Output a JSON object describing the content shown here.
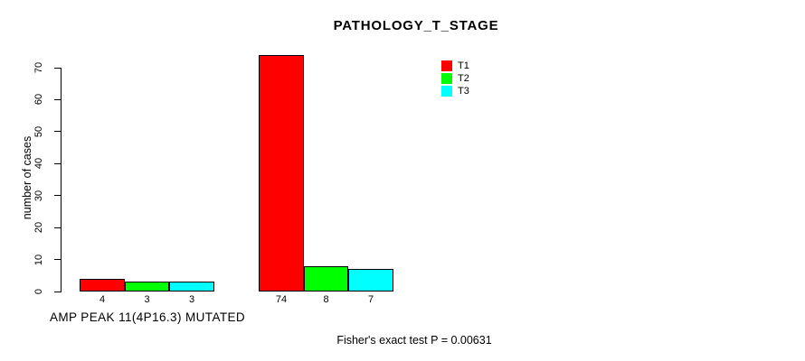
{
  "chart_data": {
    "type": "bar",
    "title": "PATHOLOGY_T_STAGE",
    "ylabel": "number of cases",
    "xlabel": "",
    "ylim": [
      0,
      70
    ],
    "yticks": [
      0,
      10,
      20,
      30,
      40,
      50,
      60,
      70
    ],
    "grid": false,
    "categories": [
      "AMP PEAK 11(4P16.3) MUTATED",
      ""
    ],
    "series": [
      {
        "name": "T1",
        "color": "#ff0000",
        "values": [
          4,
          74
        ]
      },
      {
        "name": "T2",
        "color": "#00ff00",
        "values": [
          3,
          8
        ]
      },
      {
        "name": "T3",
        "color": "#00ffff",
        "values": [
          3,
          7
        ]
      }
    ],
    "show_bar_value_labels": true,
    "legend": {
      "position": "top-right",
      "entries": [
        {
          "label": "T1",
          "color": "#ff0000"
        },
        {
          "label": "T2",
          "color": "#00ff00"
        },
        {
          "label": "T3",
          "color": "#00ffff"
        }
      ]
    },
    "annotation": "Fisher's exact test P = 0.00631"
  }
}
